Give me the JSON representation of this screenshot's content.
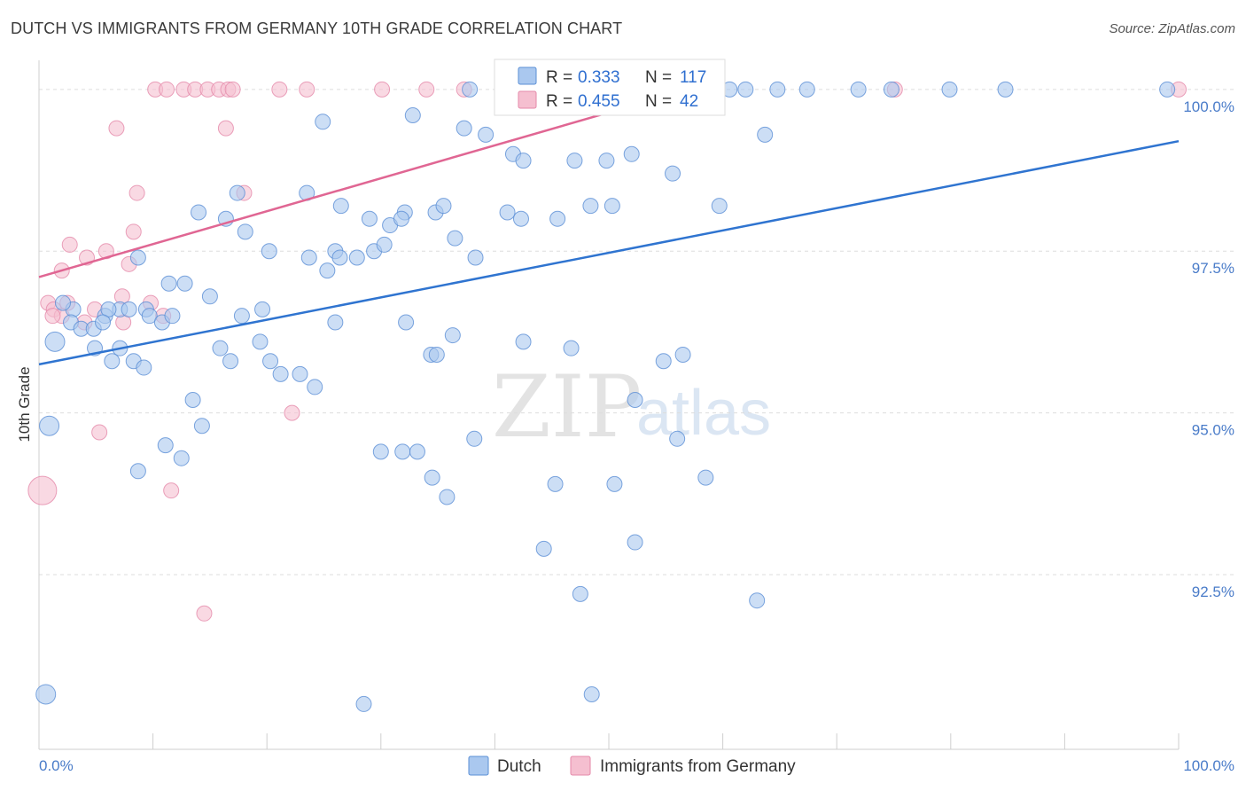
{
  "title": "DUTCH VS IMMIGRANTS FROM GERMANY 10TH GRADE CORRELATION CHART",
  "source": "Source: ZipAtlas.com",
  "watermark": {
    "zip": "ZIP",
    "atlas": "atlas"
  },
  "colors": {
    "dutch_fill": "#aac8ef",
    "dutch_stroke": "#5b8fd6",
    "dutch_line": "#2f74d0",
    "germany_fill": "#f5bfd0",
    "germany_stroke": "#e58aaa",
    "germany_line": "#e06693",
    "tick_text": "#4a7cc9",
    "grid": "#dddddd"
  },
  "legend_top": {
    "rows": [
      {
        "r_label": "R = ",
        "r_value": "0.333",
        "n_label": "N = ",
        "n_value": "117"
      },
      {
        "r_label": "R = ",
        "r_value": "0.455",
        "n_label": "N = ",
        "n_value": "42"
      }
    ]
  },
  "legend_bottom": {
    "dutch": "Dutch",
    "germany": "Immigrants from Germany"
  },
  "chart_data": {
    "type": "scatter",
    "title": "DUTCH VS IMMIGRANTS FROM GERMANY 10TH GRADE CORRELATION CHART",
    "xlabel": "",
    "ylabel": "10th Grade",
    "xlim": [
      0,
      100
    ],
    "ylim": [
      89.8,
      100.45
    ],
    "x_tick_labels": [
      "0.0%",
      "100.0%"
    ],
    "y_ticks": [
      92.5,
      95.0,
      97.5,
      100.0
    ],
    "y_tick_labels": [
      "92.5%",
      "95.0%",
      "97.5%",
      "100.0%"
    ],
    "grid": "horizontal dashed",
    "legend": "top-center and bottom",
    "series": [
      {
        "name": "Dutch",
        "R": 0.333,
        "N": 117,
        "trend": {
          "x": [
            0,
            100
          ],
          "y": [
            95.75,
            99.2
          ]
        },
        "points": [
          [
            37.8,
            100
          ],
          [
            57.1,
            100
          ],
          [
            60.6,
            100
          ],
          [
            62.0,
            100
          ],
          [
            64.8,
            100
          ],
          [
            67.4,
            100
          ],
          [
            71.9,
            100
          ],
          [
            74.8,
            100
          ],
          [
            79.9,
            100
          ],
          [
            84.8,
            100
          ],
          [
            99.0,
            100
          ],
          [
            24.9,
            99.5
          ],
          [
            32.8,
            99.6
          ],
          [
            37.3,
            99.4
          ],
          [
            39.2,
            99.3
          ],
          [
            41.6,
            99.0
          ],
          [
            42.5,
            98.9
          ],
          [
            47.0,
            98.9
          ],
          [
            49.8,
            98.9
          ],
          [
            52.0,
            99.0
          ],
          [
            55.6,
            98.7
          ],
          [
            59.7,
            98.2
          ],
          [
            63.7,
            99.3
          ],
          [
            23.5,
            98.4
          ],
          [
            26.5,
            98.2
          ],
          [
            29.0,
            98.0
          ],
          [
            32.1,
            98.1
          ],
          [
            30.8,
            97.9
          ],
          [
            31.8,
            98.0
          ],
          [
            34.8,
            98.1
          ],
          [
            35.5,
            98.2
          ],
          [
            41.1,
            98.1
          ],
          [
            42.3,
            98.0
          ],
          [
            45.5,
            98.0
          ],
          [
            48.4,
            98.2
          ],
          [
            50.3,
            98.2
          ],
          [
            14.0,
            98.1
          ],
          [
            16.4,
            98.0
          ],
          [
            17.4,
            98.4
          ],
          [
            18.1,
            97.8
          ],
          [
            20.2,
            97.5
          ],
          [
            23.7,
            97.4
          ],
          [
            25.3,
            97.2
          ],
          [
            26.0,
            97.5
          ],
          [
            26.4,
            97.4
          ],
          [
            27.9,
            97.4
          ],
          [
            29.4,
            97.5
          ],
          [
            30.3,
            97.6
          ],
          [
            36.5,
            97.7
          ],
          [
            38.3,
            97.4
          ],
          [
            8.7,
            97.4
          ],
          [
            12.8,
            97.0
          ],
          [
            15.0,
            96.8
          ],
          [
            11.4,
            97.0
          ],
          [
            9.4,
            96.6
          ],
          [
            9.7,
            96.5
          ],
          [
            7.1,
            96.6
          ],
          [
            7.9,
            96.6
          ],
          [
            5.8,
            96.5
          ],
          [
            6.1,
            96.6
          ],
          [
            3.0,
            96.6
          ],
          [
            2.1,
            96.7
          ],
          [
            1.4,
            96.1
          ],
          [
            2.8,
            96.4
          ],
          [
            3.7,
            96.3
          ],
          [
            4.8,
            96.3
          ],
          [
            5.6,
            96.4
          ],
          [
            4.9,
            96.0
          ],
          [
            10.8,
            96.4
          ],
          [
            11.7,
            96.5
          ],
          [
            17.8,
            96.5
          ],
          [
            19.6,
            96.6
          ],
          [
            26.0,
            96.4
          ],
          [
            32.2,
            96.4
          ],
          [
            36.3,
            96.2
          ],
          [
            7.1,
            96.0
          ],
          [
            6.4,
            95.8
          ],
          [
            8.3,
            95.8
          ],
          [
            9.2,
            95.7
          ],
          [
            15.9,
            96.0
          ],
          [
            16.8,
            95.8
          ],
          [
            19.4,
            96.1
          ],
          [
            20.3,
            95.8
          ],
          [
            21.2,
            95.6
          ],
          [
            22.9,
            95.6
          ],
          [
            24.2,
            95.4
          ],
          [
            34.4,
            95.9
          ],
          [
            34.9,
            95.9
          ],
          [
            42.5,
            96.1
          ],
          [
            46.7,
            96.0
          ],
          [
            52.3,
            95.2
          ],
          [
            54.8,
            95.8
          ],
          [
            56.5,
            95.9
          ],
          [
            0.9,
            94.8
          ],
          [
            13.5,
            95.2
          ],
          [
            14.3,
            94.8
          ],
          [
            31.9,
            94.4
          ],
          [
            30.0,
            94.4
          ],
          [
            33.2,
            94.4
          ],
          [
            38.2,
            94.6
          ],
          [
            50.5,
            93.9
          ],
          [
            45.3,
            93.9
          ],
          [
            34.5,
            94.0
          ],
          [
            35.8,
            93.7
          ],
          [
            11.1,
            94.5
          ],
          [
            12.5,
            94.3
          ],
          [
            8.7,
            94.1
          ],
          [
            44.3,
            92.9
          ],
          [
            47.5,
            92.2
          ],
          [
            52.3,
            93.0
          ],
          [
            63.0,
            92.1
          ],
          [
            0.6,
            90.65
          ],
          [
            28.5,
            90.5
          ],
          [
            48.5,
            90.65
          ],
          [
            56.0,
            94.6
          ],
          [
            58.5,
            94.0
          ]
        ]
      },
      {
        "name": "Immigrants from Germany",
        "R": 0.455,
        "N": 42,
        "trend": {
          "x": [
            0,
            57
          ],
          "y": [
            97.1,
            100.0
          ]
        },
        "points": [
          [
            10.2,
            100
          ],
          [
            11.2,
            100
          ],
          [
            12.7,
            100
          ],
          [
            13.7,
            100
          ],
          [
            14.8,
            100
          ],
          [
            15.8,
            100
          ],
          [
            16.6,
            100
          ],
          [
            17.0,
            100
          ],
          [
            21.1,
            100
          ],
          [
            23.5,
            100
          ],
          [
            30.1,
            100
          ],
          [
            34.0,
            100
          ],
          [
            37.3,
            100
          ],
          [
            57.4,
            100
          ],
          [
            75.1,
            100
          ],
          [
            100,
            100
          ],
          [
            6.8,
            99.4
          ],
          [
            16.4,
            99.4
          ],
          [
            8.6,
            98.4
          ],
          [
            18.0,
            98.4
          ],
          [
            8.3,
            97.8
          ],
          [
            2.7,
            97.6
          ],
          [
            4.2,
            97.4
          ],
          [
            5.9,
            97.5
          ],
          [
            7.9,
            97.3
          ],
          [
            2.0,
            97.2
          ],
          [
            0.8,
            96.7
          ],
          [
            1.3,
            96.6
          ],
          [
            2.5,
            96.7
          ],
          [
            2.0,
            96.5
          ],
          [
            4.9,
            96.6
          ],
          [
            4.0,
            96.4
          ],
          [
            7.3,
            96.8
          ],
          [
            9.8,
            96.7
          ],
          [
            10.9,
            96.5
          ],
          [
            1.2,
            96.5
          ],
          [
            22.2,
            95.0
          ],
          [
            5.3,
            94.7
          ],
          [
            11.6,
            93.8
          ],
          [
            0.3,
            93.8
          ],
          [
            14.5,
            91.9
          ],
          [
            7.4,
            96.4
          ]
        ]
      }
    ]
  }
}
